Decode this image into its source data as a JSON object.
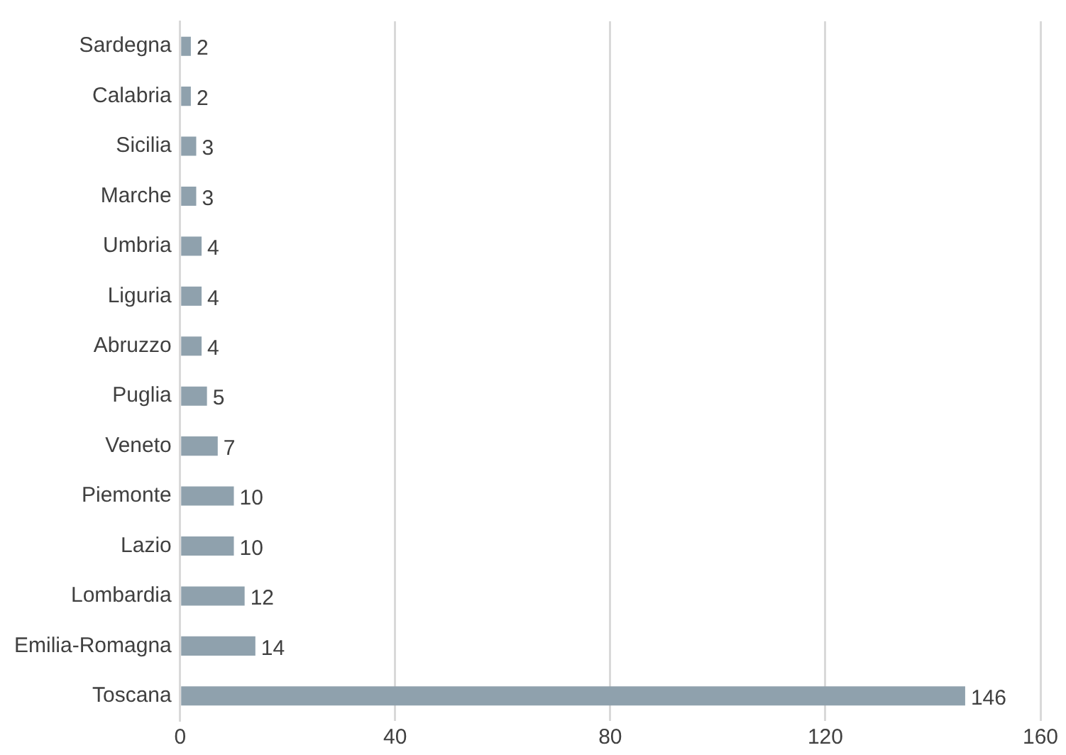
{
  "chart_data": {
    "type": "bar",
    "orientation": "horizontal",
    "categories": [
      "Sardegna",
      "Calabria",
      "Sicilia",
      "Marche",
      "Umbria",
      "Liguria",
      "Abruzzo",
      "Puglia",
      "Veneto",
      "Piemonte",
      "Lazio",
      "Lombardia",
      "Emilia-Romagna",
      "Toscana"
    ],
    "values": [
      2,
      2,
      3,
      3,
      4,
      4,
      4,
      5,
      7,
      10,
      10,
      12,
      14,
      146
    ],
    "color": "#8fa1ad",
    "xlim": [
      0,
      160
    ],
    "xticks": [
      0,
      40,
      80,
      120,
      160
    ],
    "grid": "x",
    "data_labels": true,
    "legend": false
  }
}
